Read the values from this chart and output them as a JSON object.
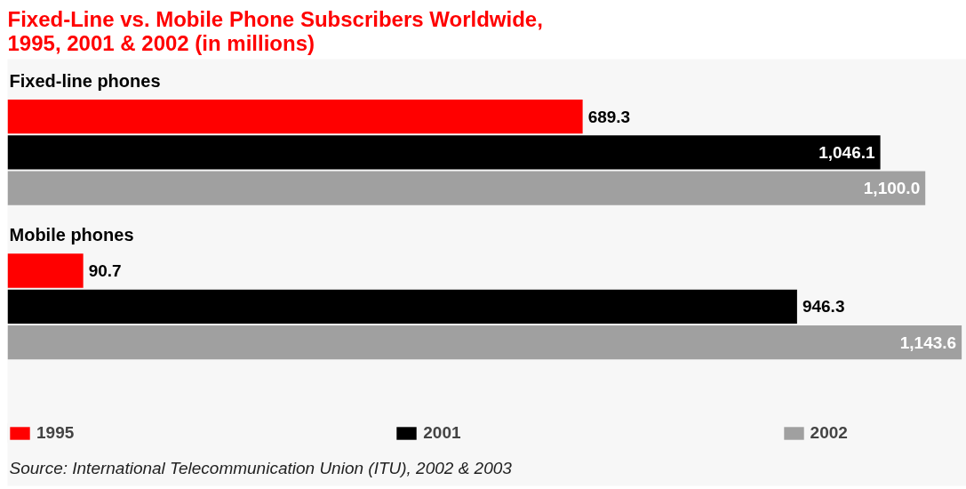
{
  "chart_data": {
    "type": "bar",
    "orientation": "horizontal",
    "title": "Fixed-Line vs. Mobile Phone Subscribers Worldwide,\n1995, 2001 & 2002 (in millions)",
    "categories": [
      "Fixed-line phones",
      "Mobile phones"
    ],
    "series": [
      {
        "name": "1995",
        "color": "#ff0000",
        "values": [
          689.3,
          90.7
        ],
        "value_labels": [
          "689.3",
          "90.7"
        ]
      },
      {
        "name": "2001",
        "color": "#000000",
        "values": [
          1046.1,
          946.3
        ],
        "value_labels": [
          "1,046.1",
          "946.3"
        ]
      },
      {
        "name": "2002",
        "color": "#a0a0a0",
        "values": [
          1100.0,
          1143.6
        ],
        "value_labels": [
          "1,100.0",
          "1,143.6"
        ]
      }
    ],
    "data_labels": true,
    "legend": "bottom",
    "grid": false,
    "annotations": [
      "Source: International Telecommunication Union (ITU), 2002 & 2003"
    ]
  }
}
